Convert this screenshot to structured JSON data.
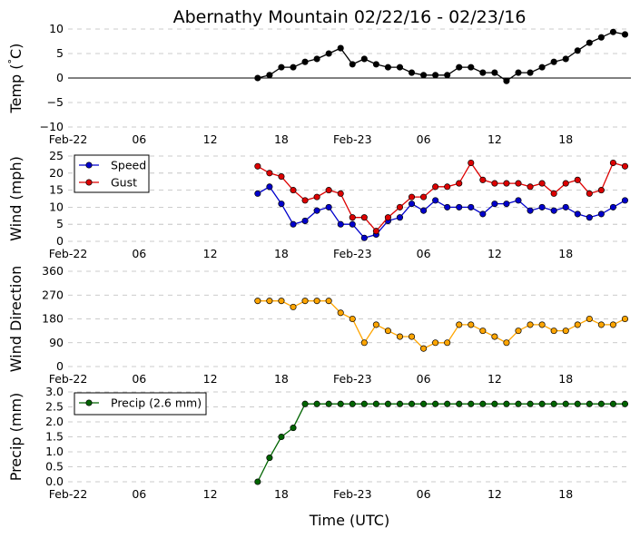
{
  "title": "Abernathy Mountain 02/22/16 - 02/23/16",
  "xlabel": "Time (UTC)",
  "x_tick_labels": [
    "Feb-22",
    "06",
    "12",
    "18",
    "Feb-23",
    "06",
    "12",
    "18"
  ],
  "x_tick_hours": [
    0,
    6,
    12,
    18,
    24,
    30,
    36,
    42
  ],
  "x_range_hours": [
    0,
    47.5
  ],
  "colors": {
    "temp": "#000000",
    "speed": "#0000cc",
    "gust": "#dd0000",
    "direction": "#ffa500",
    "precip": "#006400",
    "grid": "#bbbbbb"
  },
  "chart_data": [
    {
      "type": "line",
      "id": "temp",
      "ylabel": "Temp (°C)",
      "ylabel_text": "Temp ($^\\circ$C)",
      "ylim": [
        -10,
        10
      ],
      "yticks": [
        -10,
        -5,
        0,
        5,
        10
      ],
      "ytick_labels": [
        "−10",
        "−5",
        "0",
        "5",
        "10"
      ],
      "zero_line": true,
      "series": [
        {
          "name": "Temp",
          "color": "#000000",
          "x": [
            16,
            17,
            18,
            19,
            20,
            21,
            22,
            23,
            24,
            25,
            26,
            27,
            28,
            29,
            30,
            31,
            32,
            33,
            34,
            35,
            36,
            37,
            38,
            39,
            40,
            41,
            42,
            43,
            44,
            45,
            46,
            47
          ],
          "values": [
            0,
            0.6,
            2.2,
            2.2,
            3.3,
            3.9,
            5.0,
            6.1,
            2.8,
            3.9,
            2.8,
            2.2,
            2.2,
            1.1,
            0.6,
            0.6,
            0.6,
            2.2,
            2.2,
            1.1,
            1.1,
            -0.6,
            1.1,
            1.1,
            2.2,
            3.3,
            3.9,
            5.6,
            7.2,
            8.3,
            9.4,
            8.9
          ]
        }
      ]
    },
    {
      "type": "line",
      "id": "wind",
      "ylabel": "Wind (mph)",
      "ylim": [
        0,
        25
      ],
      "yticks": [
        0,
        5,
        10,
        15,
        20,
        25
      ],
      "ytick_labels": [
        "0",
        "5",
        "10",
        "15",
        "20",
        "25"
      ],
      "legend": "top-left",
      "series": [
        {
          "name": "Speed",
          "color": "#0000cc",
          "x": [
            16,
            17,
            18,
            19,
            20,
            21,
            22,
            23,
            24,
            25,
            26,
            27,
            28,
            29,
            30,
            31,
            32,
            33,
            34,
            35,
            36,
            37,
            38,
            39,
            40,
            41,
            42,
            43,
            44,
            45,
            46,
            47
          ],
          "values": [
            14,
            16,
            11,
            5,
            6,
            9,
            10,
            5,
            5,
            1,
            2,
            6,
            7,
            11,
            9,
            12,
            10,
            10,
            10,
            8,
            11,
            11,
            12,
            9,
            10,
            9,
            10,
            8,
            7,
            8,
            10,
            12
          ]
        },
        {
          "name": "Gust",
          "color": "#dd0000",
          "x": [
            16,
            17,
            18,
            19,
            20,
            21,
            22,
            23,
            24,
            25,
            26,
            27,
            28,
            29,
            30,
            31,
            32,
            33,
            34,
            35,
            36,
            37,
            38,
            39,
            40,
            41,
            42,
            43,
            44,
            45,
            46,
            47
          ],
          "values": [
            22,
            20,
            19,
            15,
            12,
            13,
            15,
            14,
            7,
            7,
            3,
            7,
            10,
            13,
            13,
            16,
            16,
            17,
            23,
            18,
            17,
            17,
            17,
            16,
            17,
            14,
            17,
            18,
            14,
            15,
            23,
            22
          ]
        }
      ]
    },
    {
      "type": "line",
      "id": "direction",
      "ylabel": "Wind Direction",
      "ylim": [
        0,
        360
      ],
      "yticks": [
        0,
        90,
        180,
        270,
        360
      ],
      "ytick_labels": [
        "0",
        "90",
        "180",
        "270",
        "360"
      ],
      "series": [
        {
          "name": "Direction",
          "color": "#ffa500",
          "x": [
            16,
            17,
            18,
            19,
            20,
            21,
            22,
            23,
            24,
            25,
            26,
            27,
            28,
            29,
            30,
            31,
            32,
            33,
            34,
            35,
            36,
            37,
            38,
            39,
            40,
            41,
            42,
            43,
            44,
            45,
            46,
            47
          ],
          "values": [
            248,
            248,
            248,
            225,
            248,
            248,
            248,
            203,
            180,
            90,
            158,
            135,
            113,
            113,
            68,
            90,
            90,
            158,
            158,
            135,
            113,
            90,
            135,
            158,
            158,
            135,
            135,
            158,
            180,
            158,
            158,
            180
          ]
        }
      ]
    },
    {
      "type": "line",
      "id": "precip",
      "ylabel": "Precip (mm)",
      "ylim": [
        0,
        3.0
      ],
      "yticks": [
        0,
        0.5,
        1.0,
        1.5,
        2.0,
        2.5,
        3.0
      ],
      "ytick_labels": [
        "0.0",
        "0.5",
        "1.0",
        "1.5",
        "2.0",
        "2.5",
        "3.0"
      ],
      "legend": "top-left",
      "series": [
        {
          "name": "Precip (2.6 mm)",
          "color": "#006400",
          "x": [
            16,
            17,
            18,
            19,
            20,
            21,
            22,
            23,
            24,
            25,
            26,
            27,
            28,
            29,
            30,
            31,
            32,
            33,
            34,
            35,
            36,
            37,
            38,
            39,
            40,
            41,
            42,
            43,
            44,
            45,
            46,
            47
          ],
          "values": [
            0,
            0.8,
            1.5,
            1.8,
            2.6,
            2.6,
            2.6,
            2.6,
            2.6,
            2.6,
            2.6,
            2.6,
            2.6,
            2.6,
            2.6,
            2.6,
            2.6,
            2.6,
            2.6,
            2.6,
            2.6,
            2.6,
            2.6,
            2.6,
            2.6,
            2.6,
            2.6,
            2.6,
            2.6,
            2.6,
            2.6,
            2.6
          ]
        }
      ]
    }
  ]
}
